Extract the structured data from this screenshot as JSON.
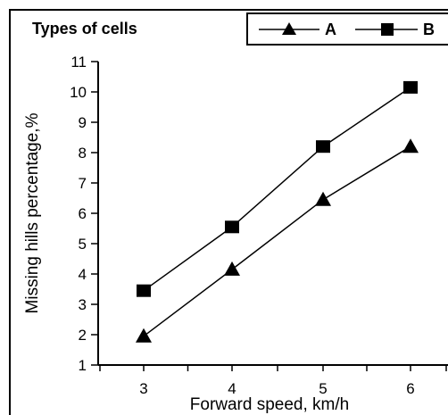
{
  "chart_data": {
    "type": "line",
    "legend_title": "Types of cells",
    "legend_position": "top",
    "xlabel": "Forward speed, km/h",
    "ylabel": "Missing hills percentage,%",
    "categories": [
      "3",
      "4",
      "5",
      "6"
    ],
    "x": [
      3,
      4,
      5,
      6
    ],
    "xlim": [
      2.5,
      6.5
    ],
    "ylim": [
      1,
      11
    ],
    "y_ticks": [
      "1",
      "2",
      "3",
      "4",
      "5",
      "6",
      "7",
      "8",
      "9",
      "10",
      "11"
    ],
    "grid": false,
    "series": [
      {
        "name": "A",
        "marker": "triangle",
        "color": "#000000",
        "values": [
          1.95,
          4.15,
          6.45,
          8.2
        ]
      },
      {
        "name": "B",
        "marker": "square",
        "color": "#000000",
        "values": [
          3.45,
          5.55,
          8.2,
          10.15
        ]
      }
    ]
  }
}
